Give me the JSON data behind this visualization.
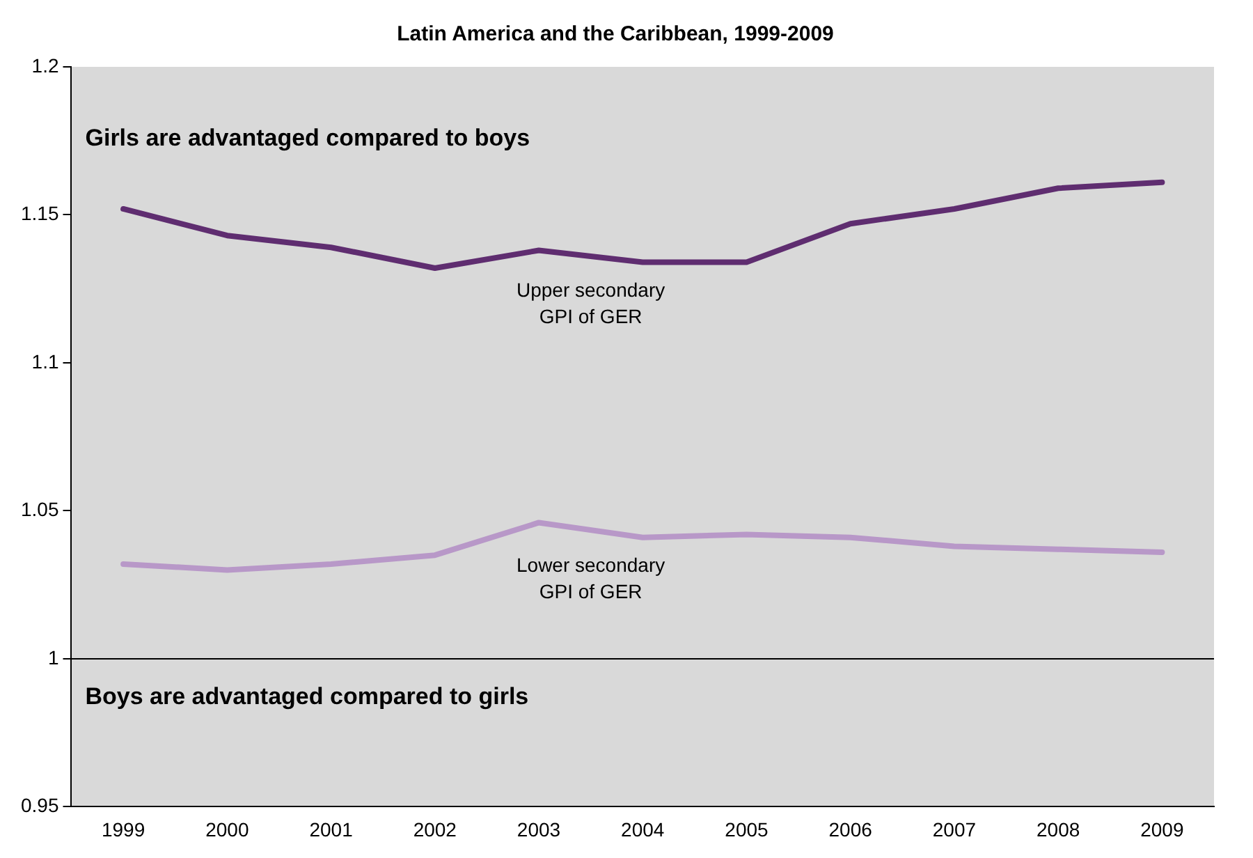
{
  "chart_data": {
    "type": "line",
    "title": "Latin America and the Caribbean, 1999-2009",
    "categories": [
      "1999",
      "2000",
      "2001",
      "2002",
      "2003",
      "2004",
      "2005",
      "2006",
      "2007",
      "2008",
      "2009"
    ],
    "series": [
      {
        "name": "Upper secondary GPI of GER",
        "color": "#5f2d70",
        "values": [
          1.152,
          1.143,
          1.139,
          1.132,
          1.138,
          1.134,
          1.134,
          1.147,
          1.152,
          1.159,
          1.161
        ]
      },
      {
        "name": "Lower secondary GPI of GER",
        "color": "#b898c8",
        "values": [
          1.032,
          1.03,
          1.032,
          1.035,
          1.046,
          1.041,
          1.042,
          1.041,
          1.038,
          1.037,
          1.036
        ]
      }
    ],
    "ylim": [
      0.95,
      1.2
    ],
    "yticks": [
      0.95,
      1,
      1.05,
      1.1,
      1.15,
      1.2
    ],
    "ref_lines": [
      {
        "axis": "y",
        "value": 1,
        "color": "#000000"
      }
    ],
    "annotations": [
      "Girls are advantaged compared to boys",
      "Boys are advantaged compared to girls"
    ],
    "grid": false,
    "legend": false,
    "marker": "none",
    "line_style": "solid"
  }
}
